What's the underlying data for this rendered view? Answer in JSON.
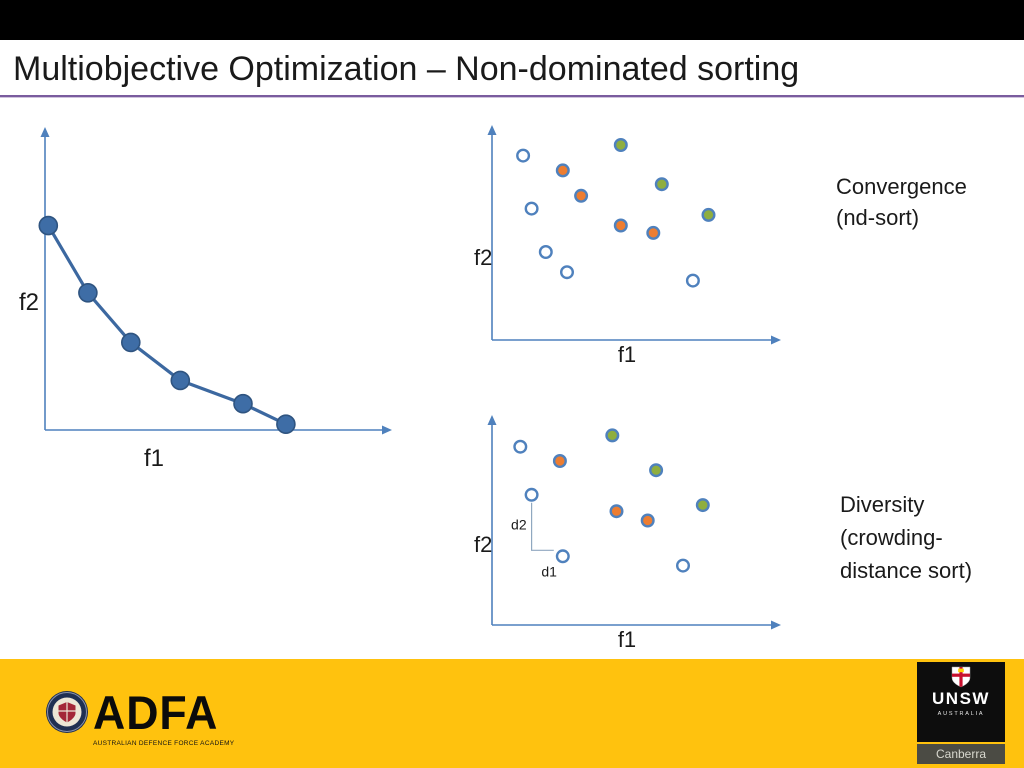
{
  "slide": {
    "title": "Multiobjective Optimization – Non-dominated sorting"
  },
  "captions": {
    "convergence": [
      "Convergence",
      "(nd-sort)"
    ],
    "diversity": [
      "Diversity",
      "(crowding-",
      "distance sort)"
    ]
  },
  "footer": {
    "adfa_acronym": "ADFA",
    "adfa_full_name": "AUSTRALIAN DEFENCE FORCE ACADEMY",
    "unsw_name": "UNSW",
    "unsw_country": "AUSTRALIA",
    "unsw_campus": "Canberra"
  },
  "colors": {
    "top_bar": "#000000",
    "title_text": "#1A1A1A",
    "title_rule_purple": "#7A5C9E",
    "axis_blue": "#4F81BD",
    "pareto_line": "#3C68A0",
    "pareto_dot_fill": "#3E6DA6",
    "pareto_dot_stroke": "#2F5480",
    "open_dot_fill": "#FFFFFF",
    "orange_dot": "#ED7D31",
    "green_dot": "#8FAE3F",
    "annotation_line": "#90A8C0",
    "footer_yellow": "#FFC20E",
    "canberra_strip": "#4B4B44"
  },
  "chart_data": [
    {
      "id": "pareto-front",
      "type": "line",
      "xlabel": "f1",
      "ylabel": "f2",
      "axes_unlabeled": true,
      "points": [
        [
          0.01,
          0.7
        ],
        [
          0.13,
          0.47
        ],
        [
          0.26,
          0.3
        ],
        [
          0.41,
          0.17
        ],
        [
          0.6,
          0.09
        ],
        [
          0.73,
          0.02
        ]
      ]
    },
    {
      "id": "convergence-nd-sort",
      "type": "scatter",
      "xlabel": "f1",
      "ylabel": "f2",
      "caption": "Convergence (nd-sort)",
      "series": [
        {
          "name": "green-dots",
          "color": "green",
          "points": [
            [
              0.455,
              0.92
            ],
            [
              0.6,
              0.735
            ],
            [
              0.765,
              0.59
            ]
          ]
        },
        {
          "name": "orange-dots",
          "color": "orange",
          "points": [
            [
              0.25,
              0.8
            ],
            [
              0.315,
              0.68
            ],
            [
              0.455,
              0.54
            ],
            [
              0.57,
              0.505
            ]
          ]
        },
        {
          "name": "open-dots",
          "color": "open",
          "points": [
            [
              0.11,
              0.87
            ],
            [
              0.14,
              0.62
            ],
            [
              0.19,
              0.415
            ],
            [
              0.265,
              0.32
            ],
            [
              0.71,
              0.28
            ]
          ]
        }
      ]
    },
    {
      "id": "diversity-crowding-distance",
      "type": "scatter",
      "xlabel": "f1",
      "ylabel": "f2",
      "caption": "Diversity (crowding-distance sort)",
      "series": [
        {
          "name": "green-dots",
          "color": "green",
          "points": [
            [
              0.425,
              0.925
            ],
            [
              0.58,
              0.755
            ],
            [
              0.745,
              0.585
            ]
          ]
        },
        {
          "name": "orange-dots",
          "color": "orange",
          "points": [
            [
              0.24,
              0.8
            ],
            [
              0.44,
              0.555
            ],
            [
              0.55,
              0.51
            ]
          ]
        },
        {
          "name": "open-dots",
          "color": "open",
          "points": [
            [
              0.1,
              0.87
            ],
            [
              0.14,
              0.635
            ],
            [
              0.25,
              0.335
            ],
            [
              0.675,
              0.29
            ]
          ]
        }
      ],
      "annotations": [
        {
          "label": "d2",
          "orientation": "vertical",
          "series": "open-dots",
          "from_point": 1,
          "to_point": 2
        },
        {
          "label": "d1",
          "orientation": "horizontal",
          "series": "open-dots",
          "from_point": 1,
          "to_point": 2
        }
      ]
    }
  ]
}
